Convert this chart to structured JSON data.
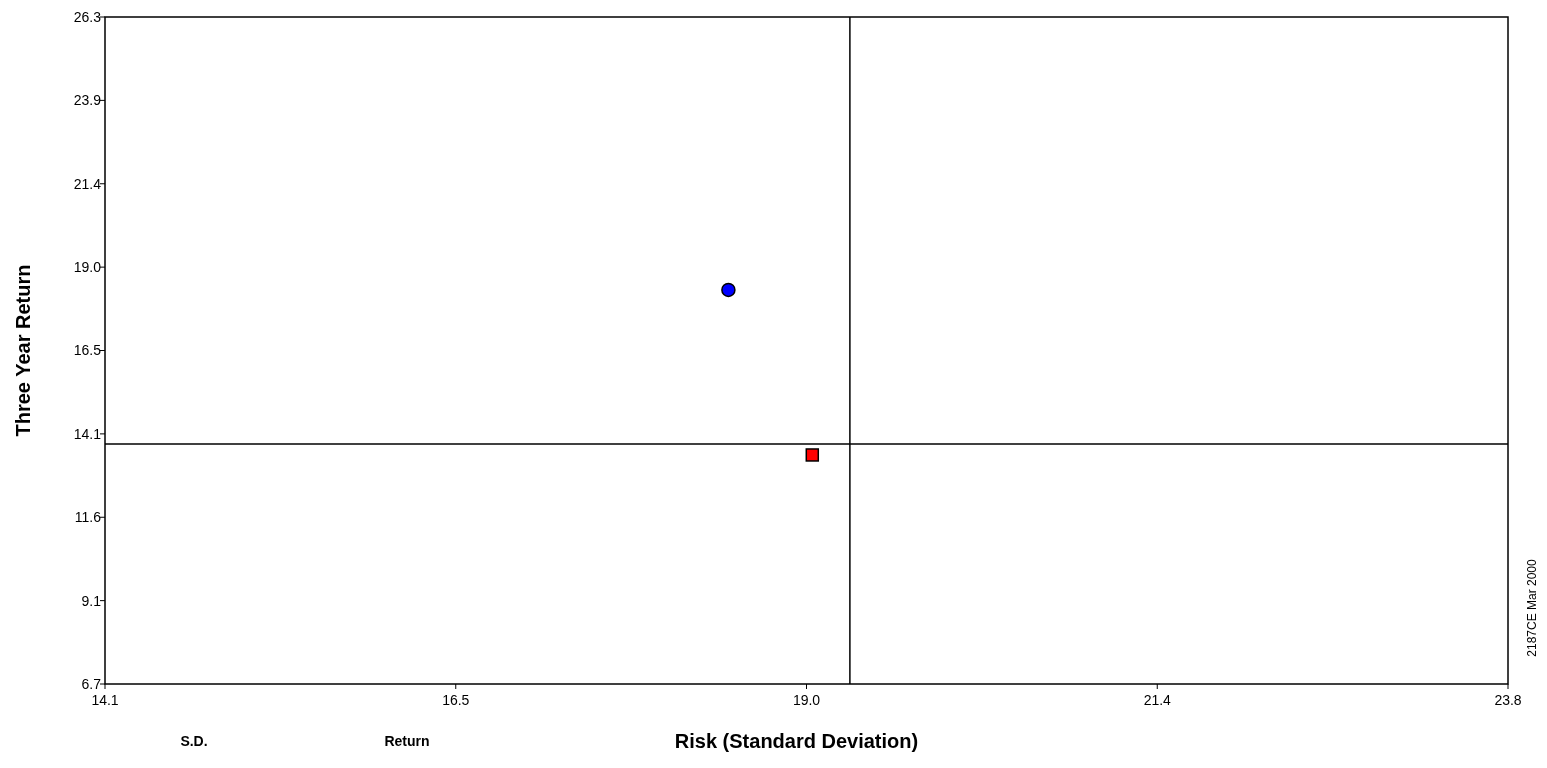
{
  "chart_data": {
    "type": "scatter",
    "xlabel": "Risk (Standard Deviation)",
    "ylabel": "Three Year Return",
    "xlim": [
      14.1,
      23.8
    ],
    "xticks": [
      14.1,
      {
        "value": 16.525,
        "label": "16.5"
      },
      {
        "value": 18.95,
        "label": "19.0"
      },
      {
        "value": 21.375,
        "label": "21.4"
      },
      23.8
    ],
    "ylim": [
      6.7,
      26.3
    ],
    "yticks": [
      6.7,
      {
        "value": 9.15,
        "label": "9.1"
      },
      11.6,
      {
        "value": 14.05,
        "label": "14.1"
      },
      16.5,
      {
        "value": 18.95,
        "label": "19.0"
      },
      21.4,
      {
        "value": 23.85,
        "label": "23.9"
      },
      26.3
    ],
    "series": [
      {
        "marker": "circle",
        "color": "#0000ff",
        "x": [
          18.41
        ],
        "values": [
          18.28
        ]
      },
      {
        "marker": "square",
        "color": "#ff0000",
        "x": [
          18.99
        ],
        "values": [
          13.43
        ]
      }
    ],
    "ref_lines": [
      {
        "axis": "x",
        "value": 19.25
      },
      {
        "axis": "y",
        "value": 13.75
      }
    ],
    "annotations": [
      "S.D.",
      "Return",
      "2187CE Mar 2000"
    ]
  }
}
